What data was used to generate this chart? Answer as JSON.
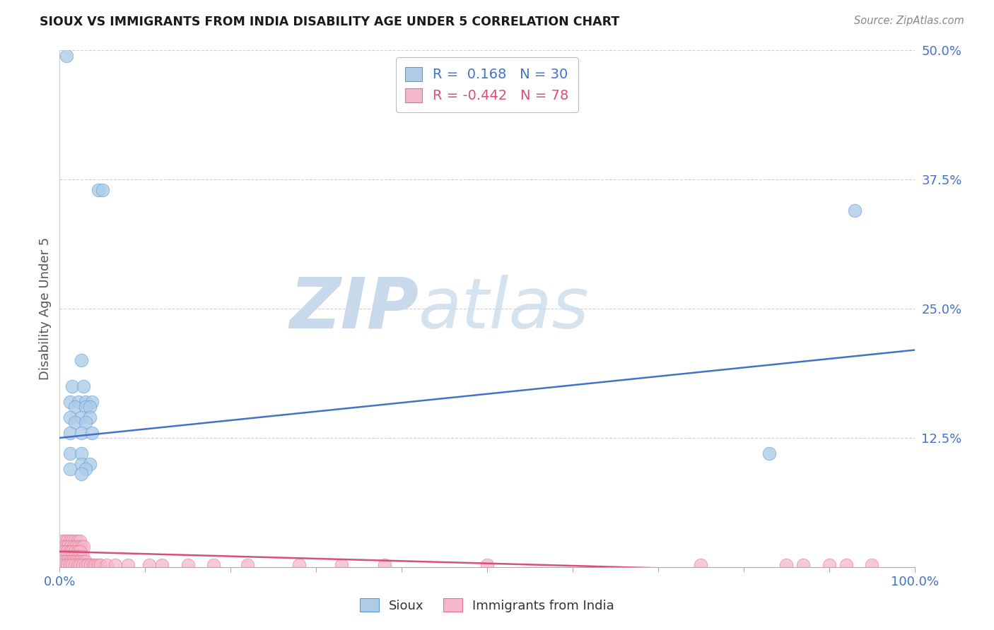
{
  "title": "SIOUX VS IMMIGRANTS FROM INDIA DISABILITY AGE UNDER 5 CORRELATION CHART",
  "source": "Source: ZipAtlas.com",
  "ylabel": "Disability Age Under 5",
  "xlim": [
    0,
    100
  ],
  "ylim": [
    0,
    50
  ],
  "yticks": [
    0,
    12.5,
    25.0,
    37.5,
    50.0
  ],
  "ytick_labels": [
    "",
    "12.5%",
    "25.0%",
    "37.5%",
    "50.0%"
  ],
  "xtick_positions": [
    0,
    10,
    20,
    30,
    40,
    50,
    60,
    70,
    80,
    90,
    100
  ],
  "xtick_labels": [
    "0.0%",
    "",
    "",
    "",
    "",
    "",
    "",
    "",
    "",
    "",
    "100.0%"
  ],
  "legend_sioux": "Sioux",
  "legend_india": "Immigrants from India",
  "sioux_R": "0.168",
  "sioux_N": "30",
  "india_R": "-0.442",
  "india_N": "78",
  "sioux_color": "#aecce8",
  "sioux_edge_color": "#5b9bd5",
  "sioux_line_color": "#4472c4",
  "india_color": "#f5b8cb",
  "india_edge_color": "#e07090",
  "india_line_color": "#d94f7a",
  "background_color": "#ffffff",
  "grid_color": "#d0d0d0",
  "watermark_zip_color": "#c5d9f0",
  "watermark_atlas_color": "#b8cce4",
  "sioux_points_x": [
    0.8,
    4.5,
    5.0,
    2.5,
    1.5,
    2.8,
    1.2,
    2.2,
    3.0,
    3.8,
    1.8,
    3.0,
    3.5,
    1.2,
    2.5,
    3.5,
    1.8,
    3.0,
    1.2,
    2.5,
    3.8,
    1.2,
    2.5,
    2.5,
    3.5,
    1.2,
    3.0,
    2.5,
    83.0,
    93.0
  ],
  "sioux_points_y": [
    49.5,
    36.5,
    36.5,
    20.0,
    17.5,
    17.5,
    16.0,
    16.0,
    16.0,
    16.0,
    15.5,
    15.5,
    15.5,
    14.5,
    14.5,
    14.5,
    14.0,
    14.0,
    13.0,
    13.0,
    13.0,
    11.0,
    11.0,
    10.0,
    10.0,
    9.5,
    9.5,
    9.0,
    11.0,
    34.5
  ],
  "india_points_x": [
    0.3,
    0.6,
    0.9,
    1.2,
    1.5,
    1.8,
    2.1,
    2.4,
    0.4,
    0.7,
    1.0,
    1.3,
    1.6,
    1.9,
    2.2,
    2.5,
    2.8,
    0.3,
    0.6,
    0.9,
    1.2,
    1.5,
    1.8,
    2.1,
    2.4,
    0.3,
    0.6,
    0.9,
    1.2,
    1.5,
    1.8,
    2.1,
    2.4,
    2.7,
    0.3,
    0.6,
    0.9,
    1.2,
    1.5,
    1.8,
    2.1,
    2.4,
    2.7,
    3.0,
    0.3,
    0.6,
    0.9,
    1.2,
    1.5,
    1.8,
    2.1,
    2.4,
    2.7,
    3.0,
    3.3,
    3.6,
    3.9,
    4.2,
    4.5,
    4.8,
    5.5,
    6.5,
    8.0,
    10.5,
    12.0,
    15.0,
    18.0,
    22.0,
    28.0,
    33.0,
    38.0,
    50.0,
    75.0,
    85.0,
    90.0,
    92.0,
    95.0,
    87.0
  ],
  "india_points_y": [
    2.5,
    2.5,
    2.5,
    2.5,
    2.5,
    2.5,
    2.5,
    2.5,
    2.0,
    2.0,
    2.0,
    2.0,
    2.0,
    2.0,
    2.0,
    2.0,
    2.0,
    1.5,
    1.5,
    1.5,
    1.5,
    1.5,
    1.5,
    1.5,
    1.5,
    1.0,
    1.0,
    1.0,
    1.0,
    1.0,
    1.0,
    1.0,
    1.0,
    1.0,
    0.5,
    0.5,
    0.5,
    0.5,
    0.5,
    0.5,
    0.5,
    0.5,
    0.5,
    0.5,
    0.2,
    0.2,
    0.2,
    0.2,
    0.2,
    0.2,
    0.2,
    0.2,
    0.2,
    0.2,
    0.2,
    0.2,
    0.2,
    0.2,
    0.2,
    0.2,
    0.2,
    0.2,
    0.2,
    0.2,
    0.2,
    0.2,
    0.2,
    0.2,
    0.2,
    0.2,
    0.2,
    0.2,
    0.2,
    0.2,
    0.2,
    0.2,
    0.2,
    0.2
  ],
  "sioux_trend_x": [
    0,
    100
  ],
  "sioux_trend_y": [
    12.5,
    21.0
  ],
  "india_trend_x": [
    0,
    100
  ],
  "india_trend_y": [
    1.5,
    -0.8
  ]
}
